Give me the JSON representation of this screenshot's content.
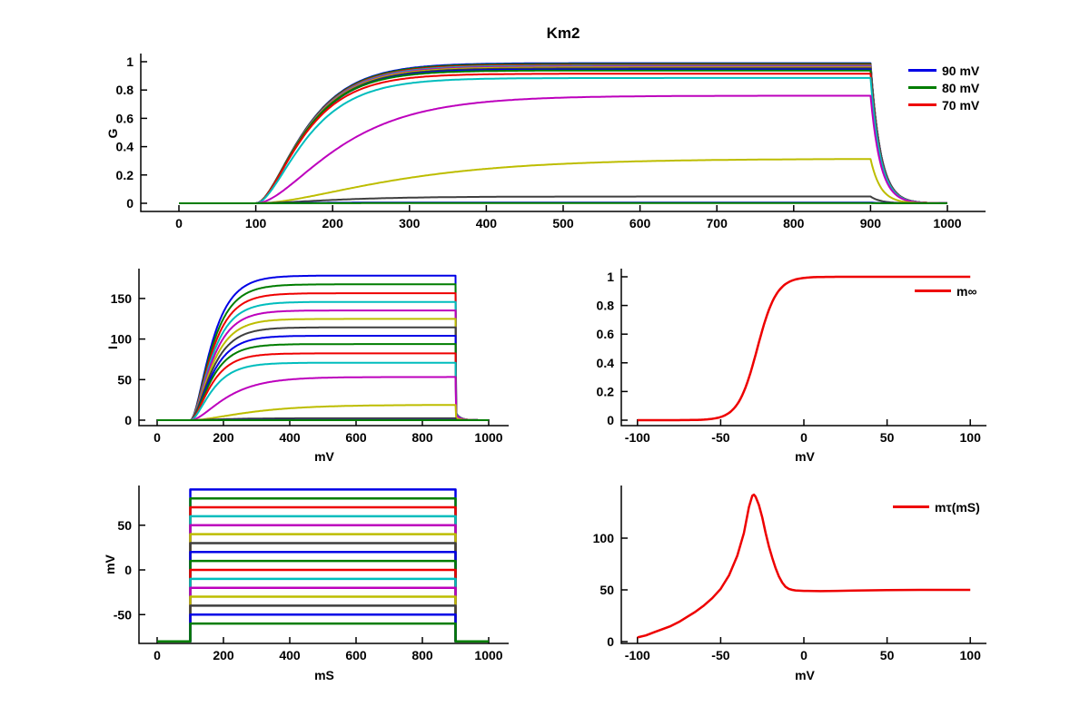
{
  "figure": {
    "title": "Km2",
    "background": "#ffffff"
  },
  "colors": {
    "order": [
      "#0000e6",
      "#007d00",
      "#ee0000",
      "#00bdbd",
      "#bd00bd",
      "#bdbd00",
      "#3f3f3f"
    ]
  },
  "protocol": {
    "hold_mV": -80,
    "reversal_mV": -90,
    "t_on_ms": 100,
    "t_off_ms": 900,
    "t_end_ms": 1000,
    "step_mV": [
      90,
      80,
      70,
      60,
      50,
      40,
      30,
      20,
      10,
      0,
      -10,
      -20,
      -30,
      -40,
      -50,
      -60
    ]
  },
  "chart_data": [
    {
      "id": "g",
      "type": "line",
      "ylabel": "G",
      "xlim": [
        -50,
        1050
      ],
      "ylim": [
        -0.06,
        1.06
      ],
      "xticks": [
        0,
        100,
        200,
        300,
        400,
        500,
        600,
        700,
        800,
        900,
        1000
      ],
      "yticks": [
        0,
        0.2,
        0.4,
        0.6,
        0.8,
        1
      ],
      "decay_tau_ms": 13,
      "series": [
        {
          "step_mV": 90,
          "g_inf": 0.99,
          "tau_ms": 50
        },
        {
          "step_mV": 80,
          "g_inf": 0.985,
          "tau_ms": 50
        },
        {
          "step_mV": 70,
          "g_inf": 0.978,
          "tau_ms": 50
        },
        {
          "step_mV": 60,
          "g_inf": 0.972,
          "tau_ms": 50
        },
        {
          "step_mV": 50,
          "g_inf": 0.966,
          "tau_ms": 50
        },
        {
          "step_mV": 40,
          "g_inf": 0.96,
          "tau_ms": 50
        },
        {
          "step_mV": 30,
          "g_inf": 0.953,
          "tau_ms": 50
        },
        {
          "step_mV": 20,
          "g_inf": 0.946,
          "tau_ms": 50
        },
        {
          "step_mV": 10,
          "g_inf": 0.938,
          "tau_ms": 49
        },
        {
          "step_mV": 0,
          "g_inf": 0.915,
          "tau_ms": 49
        },
        {
          "step_mV": -10,
          "g_inf": 0.885,
          "tau_ms": 52
        },
        {
          "step_mV": -20,
          "g_inf": 0.76,
          "tau_ms": 85
        },
        {
          "step_mV": -30,
          "g_inf": 0.315,
          "tau_ms": 142
        },
        {
          "step_mV": -40,
          "g_inf": 0.048,
          "tau_ms": 83
        },
        {
          "step_mV": -50,
          "g_inf": 0.005,
          "tau_ms": 51
        },
        {
          "step_mV": -60,
          "g_inf": 0.001,
          "tau_ms": 35
        }
      ],
      "legend": [
        {
          "label": "90 mV",
          "color": "#0000e6"
        },
        {
          "label": "80 mV",
          "color": "#007d00"
        },
        {
          "label": "70 mV",
          "color": "#ee0000"
        }
      ]
    },
    {
      "id": "i",
      "type": "line",
      "ylabel": "I",
      "xlabel": "mV",
      "xlim": [
        -55,
        1052
      ],
      "ylim": [
        -6,
        186
      ],
      "xticks": [
        0,
        200,
        400,
        600,
        800,
        1000
      ],
      "yticks": [
        0,
        50,
        100,
        150
      ],
      "decay_tau_ms": 13,
      "series": [
        {
          "step_mV": 90,
          "i_inf": 178.2,
          "g_inf": 0.99,
          "tau_ms": 50
        },
        {
          "step_mV": 80,
          "i_inf": 167.5,
          "g_inf": 0.985,
          "tau_ms": 50
        },
        {
          "step_mV": 70,
          "i_inf": 156.5,
          "g_inf": 0.978,
          "tau_ms": 50
        },
        {
          "step_mV": 60,
          "i_inf": 145.8,
          "g_inf": 0.972,
          "tau_ms": 50
        },
        {
          "step_mV": 50,
          "i_inf": 135.2,
          "g_inf": 0.966,
          "tau_ms": 50
        },
        {
          "step_mV": 40,
          "i_inf": 124.8,
          "g_inf": 0.96,
          "tau_ms": 50
        },
        {
          "step_mV": 30,
          "i_inf": 114.4,
          "g_inf": 0.953,
          "tau_ms": 50
        },
        {
          "step_mV": 20,
          "i_inf": 104.1,
          "g_inf": 0.946,
          "tau_ms": 50
        },
        {
          "step_mV": 10,
          "i_inf": 93.8,
          "g_inf": 0.938,
          "tau_ms": 49
        },
        {
          "step_mV": 0,
          "i_inf": 82.4,
          "g_inf": 0.915,
          "tau_ms": 49
        },
        {
          "step_mV": -10,
          "i_inf": 70.8,
          "g_inf": 0.885,
          "tau_ms": 52
        },
        {
          "step_mV": -20,
          "i_inf": 53.2,
          "g_inf": 0.76,
          "tau_ms": 85
        },
        {
          "step_mV": -30,
          "i_inf": 18.9,
          "g_inf": 0.315,
          "tau_ms": 142
        },
        {
          "step_mV": -40,
          "i_inf": 2.4,
          "g_inf": 0.048,
          "tau_ms": 83
        },
        {
          "step_mV": -50,
          "i_inf": 0.2,
          "g_inf": 0.005,
          "tau_ms": 51
        },
        {
          "step_mV": -60,
          "i_inf": 0.03,
          "g_inf": 0.001,
          "tau_ms": 35
        }
      ]
    },
    {
      "id": "minf",
      "type": "line",
      "xlabel": "mV",
      "xlim": [
        -110,
        110
      ],
      "ylim": [
        -0.05,
        1.05
      ],
      "xticks": [
        -100,
        -50,
        0,
        50,
        100
      ],
      "yticks": [
        0,
        0.2,
        0.4,
        0.6,
        0.8,
        1
      ],
      "sigmoid": {
        "v_half_mV": -28,
        "slope_mV": 5.8,
        "v_range": [
          -100,
          100
        ]
      },
      "points": [
        [
          -100,
          0
        ],
        [
          -90,
          0
        ],
        [
          -80,
          0
        ],
        [
          -70,
          0.001
        ],
        [
          -60,
          0.004
        ],
        [
          -50,
          0.022
        ],
        [
          -40,
          0.112
        ],
        [
          -30,
          0.412
        ],
        [
          -20,
          0.801
        ],
        [
          -10,
          0.957
        ],
        [
          0,
          0.992
        ],
        [
          10,
          0.999
        ],
        [
          20,
          1
        ],
        [
          50,
          1
        ],
        [
          100,
          1
        ]
      ],
      "color": "#ee0000",
      "legend": [
        {
          "label": "m∞",
          "color": "#ee0000"
        }
      ]
    },
    {
      "id": "v",
      "type": "line",
      "ylabel": "mV",
      "xlabel": "mS",
      "xlim": [
        -55,
        1052
      ],
      "ylim": [
        -85,
        95
      ],
      "xticks": [
        0,
        200,
        400,
        600,
        800,
        1000
      ],
      "yticks": [
        -50,
        0,
        50
      ],
      "series": [
        {
          "step_mV": 90
        },
        {
          "step_mV": 80
        },
        {
          "step_mV": 70
        },
        {
          "step_mV": 60
        },
        {
          "step_mV": 50
        },
        {
          "step_mV": 40
        },
        {
          "step_mV": 30
        },
        {
          "step_mV": 20
        },
        {
          "step_mV": 10
        },
        {
          "step_mV": 0
        },
        {
          "step_mV": -10
        },
        {
          "step_mV": -20
        },
        {
          "step_mV": -30
        },
        {
          "step_mV": -40
        },
        {
          "step_mV": -50
        },
        {
          "step_mV": -60
        }
      ]
    },
    {
      "id": "mtau",
      "type": "line",
      "xlabel": "mV",
      "xlim": [
        -110,
        110
      ],
      "ylim": [
        -4,
        151
      ],
      "xticks": [
        -100,
        -50,
        0,
        50,
        100
      ],
      "yticks": [
        0,
        50,
        100
      ],
      "points": [
        [
          -100,
          4
        ],
        [
          -95,
          6
        ],
        [
          -90,
          9
        ],
        [
          -85,
          12
        ],
        [
          -80,
          15
        ],
        [
          -75,
          19
        ],
        [
          -70,
          24
        ],
        [
          -65,
          29
        ],
        [
          -60,
          35
        ],
        [
          -55,
          42
        ],
        [
          -50,
          51
        ],
        [
          -45,
          64
        ],
        [
          -40,
          83
        ],
        [
          -36,
          105
        ],
        [
          -33,
          130
        ],
        [
          -31,
          141
        ],
        [
          -30,
          142
        ],
        [
          -29,
          140
        ],
        [
          -27,
          132
        ],
        [
          -25,
          120
        ],
        [
          -23,
          105
        ],
        [
          -21,
          92
        ],
        [
          -19,
          81
        ],
        [
          -17,
          71
        ],
        [
          -15,
          63
        ],
        [
          -13,
          57
        ],
        [
          -11,
          53
        ],
        [
          -9,
          51
        ],
        [
          -7,
          50
        ],
        [
          -5,
          49.5
        ],
        [
          0,
          49
        ],
        [
          10,
          48.8
        ],
        [
          20,
          49
        ],
        [
          30,
          49.4
        ],
        [
          50,
          49.8
        ],
        [
          70,
          50
        ],
        [
          100,
          50
        ]
      ],
      "color": "#ee0000",
      "legend": [
        {
          "label": "mτ(mS)",
          "color": "#ee0000"
        }
      ]
    }
  ]
}
